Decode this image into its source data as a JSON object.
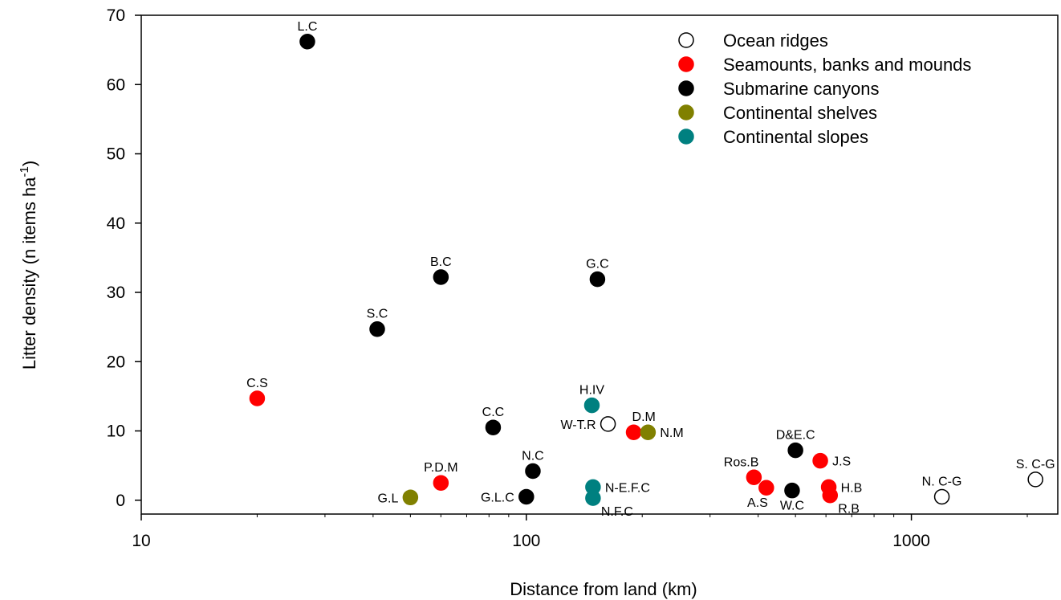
{
  "chart_data": {
    "type": "scatter",
    "xlabel": "Distance from land (km)",
    "ylabel_main": "Litter density (n items ha",
    "ylabel_sup": "-1",
    "ylabel_close": ")",
    "x_scale": "log",
    "xlim": [
      10,
      2400
    ],
    "ylim": [
      -2,
      70
    ],
    "x_ticks": [
      10,
      100,
      1000
    ],
    "y_ticks": [
      0,
      10,
      20,
      30,
      40,
      50,
      60,
      70
    ],
    "legend_position": "top-right",
    "series": [
      {
        "name": "Ocean ridges",
        "color": "#ffffff",
        "hollow": true,
        "points": [
          {
            "label": "W-T.R",
            "x": 163,
            "y": 11,
            "label_pos": "left"
          },
          {
            "label": "N. C-G",
            "x": 1200,
            "y": 0.5,
            "label_pos": "above"
          },
          {
            "label": "S. C-G",
            "x": 2100,
            "y": 3,
            "label_pos": "above"
          }
        ]
      },
      {
        "name": "Seamounts, banks and mounds",
        "color": "#ff0000",
        "hollow": false,
        "points": [
          {
            "label": "C.S",
            "x": 20,
            "y": 14.7,
            "label_pos": "above"
          },
          {
            "label": "P.D.M",
            "x": 60,
            "y": 2.5,
            "label_pos": "above"
          },
          {
            "label": "D.M",
            "x": 190,
            "y": 9.8,
            "label_pos": "above-right"
          },
          {
            "label": "Ros.B",
            "x": 390,
            "y": 3.3,
            "label_pos": "above-left"
          },
          {
            "label": "A.S",
            "x": 420,
            "y": 1.8,
            "label_pos": "below-left"
          },
          {
            "label": "J.S",
            "x": 580,
            "y": 5.7,
            "label_pos": "right"
          },
          {
            "label": "H.B",
            "x": 610,
            "y": 1.9,
            "label_pos": "right"
          },
          {
            "label": "R.B",
            "x": 615,
            "y": 0.7,
            "label_pos": "below-right"
          }
        ]
      },
      {
        "name": "Submarine canyons",
        "color": "#000000",
        "hollow": false,
        "points": [
          {
            "label": "L.C",
            "x": 27,
            "y": 66.2,
            "label_pos": "above"
          },
          {
            "label": "B.C",
            "x": 60,
            "y": 32.2,
            "label_pos": "above"
          },
          {
            "label": "S.C",
            "x": 41,
            "y": 24.7,
            "label_pos": "above"
          },
          {
            "label": "G.C",
            "x": 153,
            "y": 31.9,
            "label_pos": "above"
          },
          {
            "label": "C.C",
            "x": 82,
            "y": 10.5,
            "label_pos": "above"
          },
          {
            "label": "N.C",
            "x": 104,
            "y": 4.2,
            "label_pos": "above"
          },
          {
            "label": "G.L.C",
            "x": 100,
            "y": 0.5,
            "label_pos": "left"
          },
          {
            "label": "D&E.C",
            "x": 500,
            "y": 7.2,
            "label_pos": "above"
          },
          {
            "label": "W.C",
            "x": 490,
            "y": 1.4,
            "label_pos": "below"
          }
        ]
      },
      {
        "name": "Continental shelves",
        "color": "#808000",
        "hollow": false,
        "points": [
          {
            "label": "G.L",
            "x": 50,
            "y": 0.4,
            "label_pos": "left"
          },
          {
            "label": "N.M",
            "x": 207,
            "y": 9.8,
            "label_pos": "right"
          }
        ]
      },
      {
        "name": "Continental slopes",
        "color": "#008080",
        "hollow": false,
        "points": [
          {
            "label": "H.IV",
            "x": 148,
            "y": 13.7,
            "label_pos": "above"
          },
          {
            "label": "N-E.F.C",
            "x": 149,
            "y": 1.9,
            "label_pos": "right"
          },
          {
            "label": "N.F.C",
            "x": 149,
            "y": 0.3,
            "label_pos": "below-right"
          }
        ]
      }
    ]
  }
}
